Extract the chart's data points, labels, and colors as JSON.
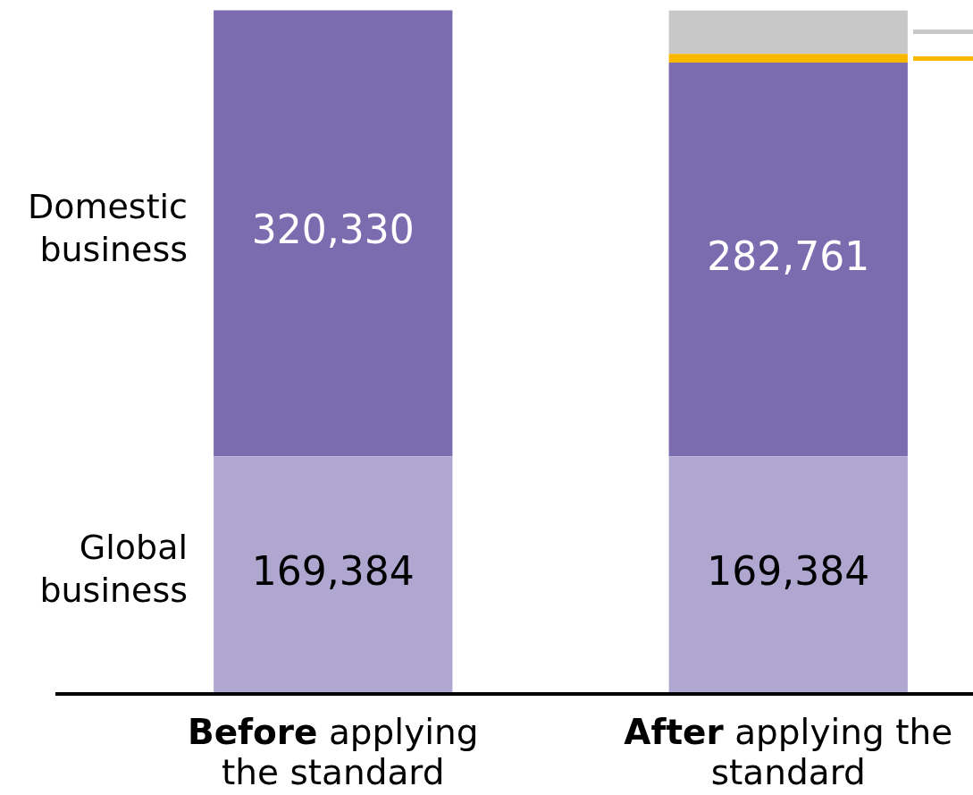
{
  "chart_data": {
    "type": "bar",
    "stacked": true,
    "categories": [
      "Before applying the standard",
      "After applying the standard"
    ],
    "series": [
      {
        "name": "Global business",
        "color": "#afa7d0",
        "values": [
          169384,
          169384
        ],
        "value_labels": [
          "169,384",
          "169,384"
        ]
      },
      {
        "name": "Domestic business",
        "color": "#7b6cb0",
        "values": [
          320330,
          282761
        ],
        "value_labels": [
          "320,330",
          "282,761"
        ]
      },
      {
        "color": "#f9b700",
        "values": [
          null,
          6300
        ]
      },
      {
        "color": "#c8c8c8",
        "values": [
          null,
          31000
        ]
      }
    ],
    "ylim": [
      0,
      490000
    ],
    "tick_labels": "x",
    "grid": false,
    "legend": false
  }
}
